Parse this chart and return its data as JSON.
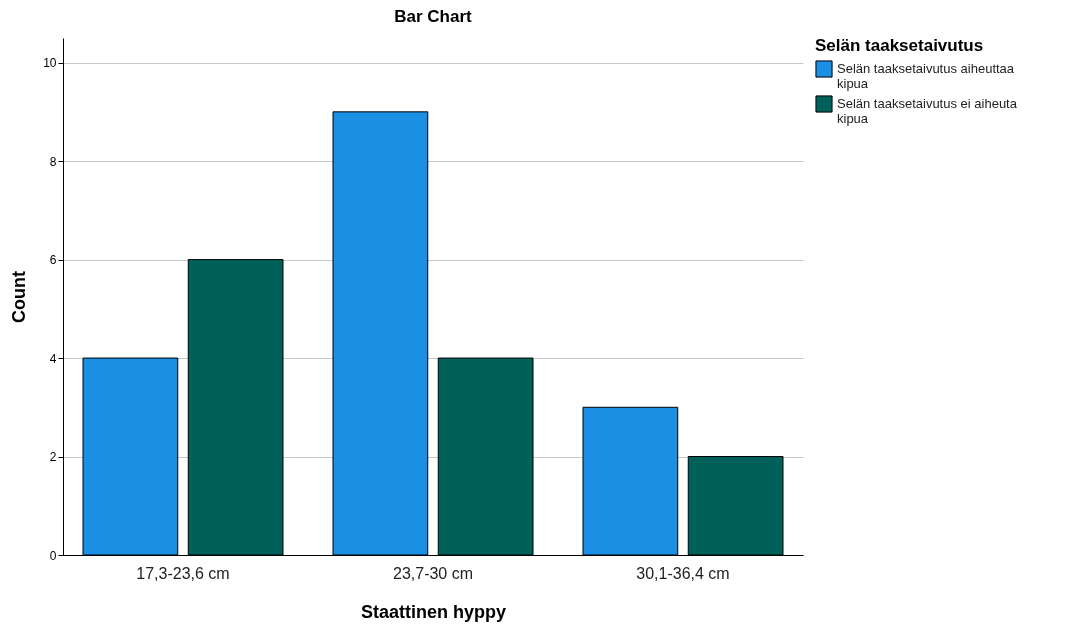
{
  "chart_data": {
    "type": "bar",
    "title": "Bar Chart",
    "xlabel": "Staattinen hyppy",
    "ylabel": "Count",
    "legend_title": "Selän taaksetaivutus",
    "categories": [
      "17,3-23,6 cm",
      "23,7-30 cm",
      "30,1-36,4 cm"
    ],
    "series": [
      {
        "name": "Selän taaksetaivutus aiheuttaa kipua",
        "color": "#1a8fe3",
        "values": [
          4,
          9,
          3
        ]
      },
      {
        "name": "Selän taaksetaivutus ei aiheuta kipua",
        "color": "#00605a",
        "values": [
          6,
          4,
          2
        ]
      }
    ],
    "ylim": [
      0,
      10.5
    ],
    "yticks": [
      0,
      2,
      4,
      6,
      8,
      10
    ],
    "grid": "y",
    "legend": "top right"
  }
}
